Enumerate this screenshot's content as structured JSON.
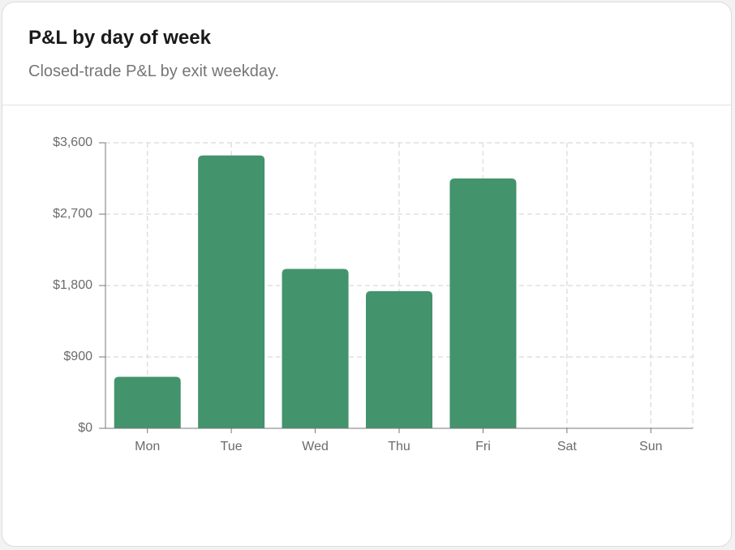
{
  "chart_data": {
    "type": "bar",
    "title": "P&L by day of week",
    "subtitle": "Closed-trade P&L by exit weekday.",
    "categories": [
      "Mon",
      "Tue",
      "Wed",
      "Thu",
      "Fri",
      "Sat",
      "Sun"
    ],
    "values": [
      650,
      3440,
      2010,
      1730,
      3150,
      0,
      0
    ],
    "color": "#43936c",
    "ylim": [
      0,
      3600
    ],
    "yticks": [
      {
        "value": 0,
        "label": "$0"
      },
      {
        "value": 900,
        "label": "$900"
      },
      {
        "value": 1800,
        "label": "$1,800"
      },
      {
        "value": 2700,
        "label": "$2,700"
      },
      {
        "value": 3600,
        "label": "$3,600"
      }
    ],
    "grid": true
  }
}
